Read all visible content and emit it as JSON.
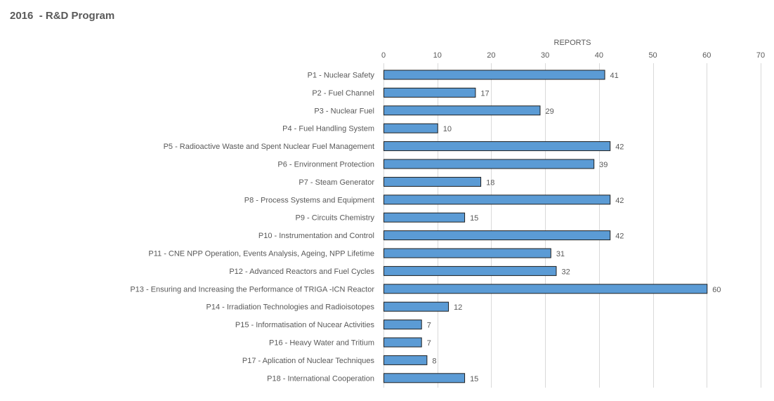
{
  "chart_data": {
    "type": "bar",
    "orientation": "horizontal",
    "title": "2016  - R&D Program",
    "xlabel": "REPORTS",
    "ylabel": "",
    "xlim": [
      0,
      70
    ],
    "x_ticks": [
      0,
      10,
      20,
      30,
      40,
      50,
      60,
      70
    ],
    "x_axis_position": "top",
    "grid": true,
    "legend": "none",
    "data_labels": true,
    "colors": {
      "bar_fill": "#5b9bd5",
      "bar_stroke": "#1f1f1f",
      "grid": "#d9d9d9",
      "text": "#595959",
      "title": "#595959"
    },
    "categories": [
      "P1 - Nuclear Safety",
      "P2 - Fuel Channel",
      "P3 - Nuclear Fuel",
      "P4 - Fuel Handling System",
      "P5 - Radioactive Waste and Spent Nuclear Fuel Management",
      "P6 - Environment Protection",
      "P7 - Steam Generator",
      "P8 - Process Systems and Equipment",
      "P9 - Circuits Chemistry",
      "P10 - Instrumentation and Control",
      "P11 - CNE NPP Operation, Events Analysis, Ageing, NPP Lifetime",
      "P12 - Advanced Reactors and Fuel Cycles",
      "P13 - Ensuring and Increasing the Performance of TRIGA -ICN Reactor",
      "P14 - Irradiation Technologies and Radioisotopes",
      "P15 - Informatisation of Nucear Activities",
      "P16 - Heavy Water and Tritium",
      "P17 - Aplication of Nuclear Techniques",
      "P18 - International Cooperation"
    ],
    "values": [
      41,
      17,
      29,
      10,
      42,
      39,
      18,
      42,
      15,
      42,
      31,
      32,
      60,
      12,
      7,
      7,
      8,
      15
    ]
  }
}
